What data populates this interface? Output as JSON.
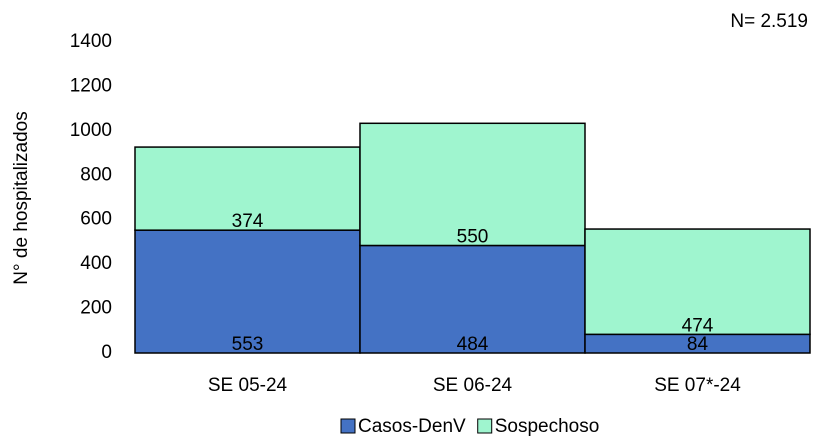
{
  "chart_data": {
    "type": "stacked_bar",
    "annotation": "N= 2.519",
    "y_label": "N° de hospitalizados",
    "categories": [
      "SE 05-24",
      "SE 06-24",
      "SE 07*-24"
    ],
    "series": [
      {
        "name": "Casos-DenV",
        "color": "#4472c4",
        "values": [
          553,
          484,
          84
        ]
      },
      {
        "name": "Sospechoso",
        "color": "#9ff5cf",
        "values": [
          374,
          550,
          474
        ]
      }
    ],
    "ylim": [
      0,
      1400
    ],
    "yticks": [
      0,
      200,
      400,
      600,
      800,
      1000,
      1200,
      1400
    ],
    "legend": "bottom"
  }
}
